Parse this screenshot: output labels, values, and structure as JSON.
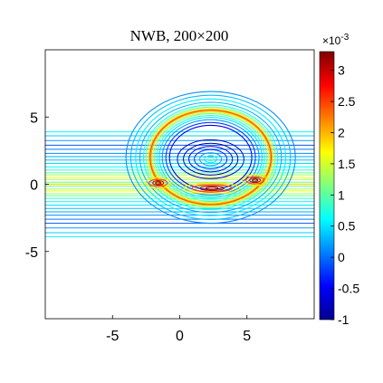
{
  "chart_data": {
    "type": "contour",
    "title": "NWB, 200×200",
    "xlabel": "",
    "ylabel": "",
    "xlim": [
      -10,
      10
    ],
    "ylim": [
      -10,
      10
    ],
    "x_ticks": [
      -5,
      0,
      5
    ],
    "x_tick_labels": [
      "-5",
      "0",
      "5"
    ],
    "y_ticks": [
      5,
      0,
      -5
    ],
    "y_tick_labels": [
      "5",
      "0",
      "-5"
    ],
    "grid": false,
    "colorbar": {
      "min": -1,
      "max": 3.3,
      "exponent_label": "×10",
      "exponent": "-3",
      "ticks": [
        3,
        2.5,
        2,
        1.5,
        1,
        0.5,
        0,
        -0.5,
        -1
      ],
      "tick_labels": [
        "3",
        "2.5",
        "2",
        "1.5",
        "1",
        "0.5",
        "0",
        "-0.5",
        "-1"
      ],
      "colormap": "jet"
    },
    "features": {
      "waveguide_center_y": 0,
      "ring_center": [
        2.3,
        2.0
      ],
      "ring_radius_x": 4.5,
      "ring_radius_y": 3.5,
      "ring_peak_value": 3.2
    }
  }
}
